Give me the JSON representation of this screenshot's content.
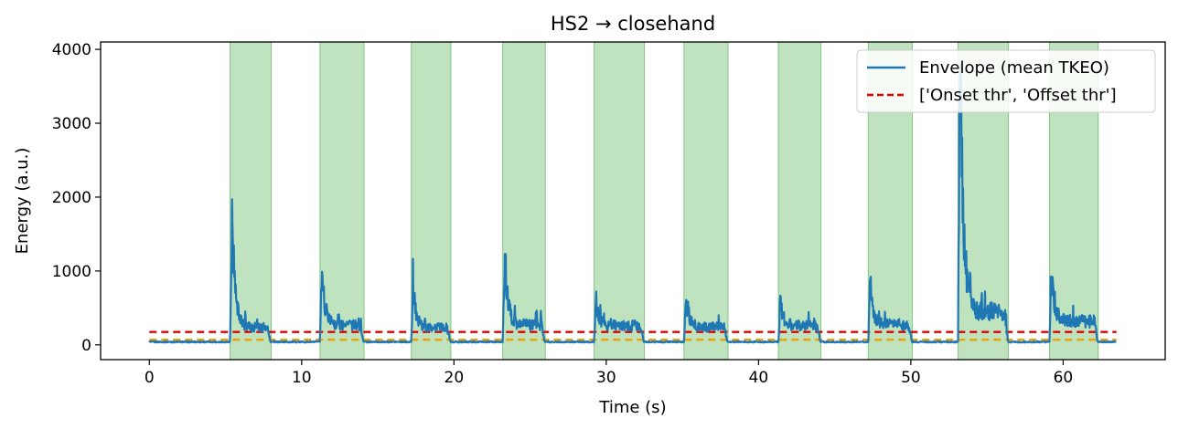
{
  "chart_data": {
    "type": "line",
    "title": "HS2 → closehand",
    "xlabel": "Time (s)",
    "ylabel": "Energy (a.u.)",
    "xlim": [
      -3.2,
      66.7
    ],
    "ylim": [
      -200,
      4100
    ],
    "xticks": [
      0,
      10,
      20,
      30,
      40,
      50,
      60
    ],
    "yticks": [
      0,
      1000,
      2000,
      3000,
      4000
    ],
    "legend_position": "top-right",
    "legend": [
      {
        "label": "Envelope (mean TKEO)",
        "style": "solid",
        "color": "#1f77b4"
      },
      {
        "label": "['Onset thr', 'Offset thr']",
        "style": "dashed",
        "color": "#e00000"
      }
    ],
    "duration": 63.5,
    "envelope_color": "#1f77b4",
    "baseline": 40,
    "segments_color": "#2ca02c",
    "active_segments": [
      {
        "start": 5.3,
        "end": 8.0,
        "peak": 1740,
        "plateau": 240
      },
      {
        "start": 11.2,
        "end": 14.1,
        "peak": 1010,
        "plateau": 270
      },
      {
        "start": 17.2,
        "end": 19.8,
        "peak": 780,
        "plateau": 230
      },
      {
        "start": 23.2,
        "end": 26.0,
        "peak": 1270,
        "plateau": 270
      },
      {
        "start": 29.2,
        "end": 32.5,
        "peak": 620,
        "plateau": 260
      },
      {
        "start": 35.1,
        "end": 38.0,
        "peak": 690,
        "plateau": 240
      },
      {
        "start": 41.3,
        "end": 44.1,
        "peak": 570,
        "plateau": 260
      },
      {
        "start": 47.2,
        "end": 50.1,
        "peak": 850,
        "plateau": 270
      },
      {
        "start": 53.1,
        "end": 56.4,
        "peak": 3930,
        "plateau": 450
      },
      {
        "start": 59.1,
        "end": 62.3,
        "peak": 1060,
        "plateau": 320
      }
    ],
    "thresholds": [
      {
        "name": "Onset thr",
        "value": 175,
        "color": "#e00000"
      },
      {
        "name": "Offset thr",
        "value": 70,
        "color": "#f0a000"
      }
    ],
    "threshold_xrange": [
      0,
      63.5
    ]
  }
}
